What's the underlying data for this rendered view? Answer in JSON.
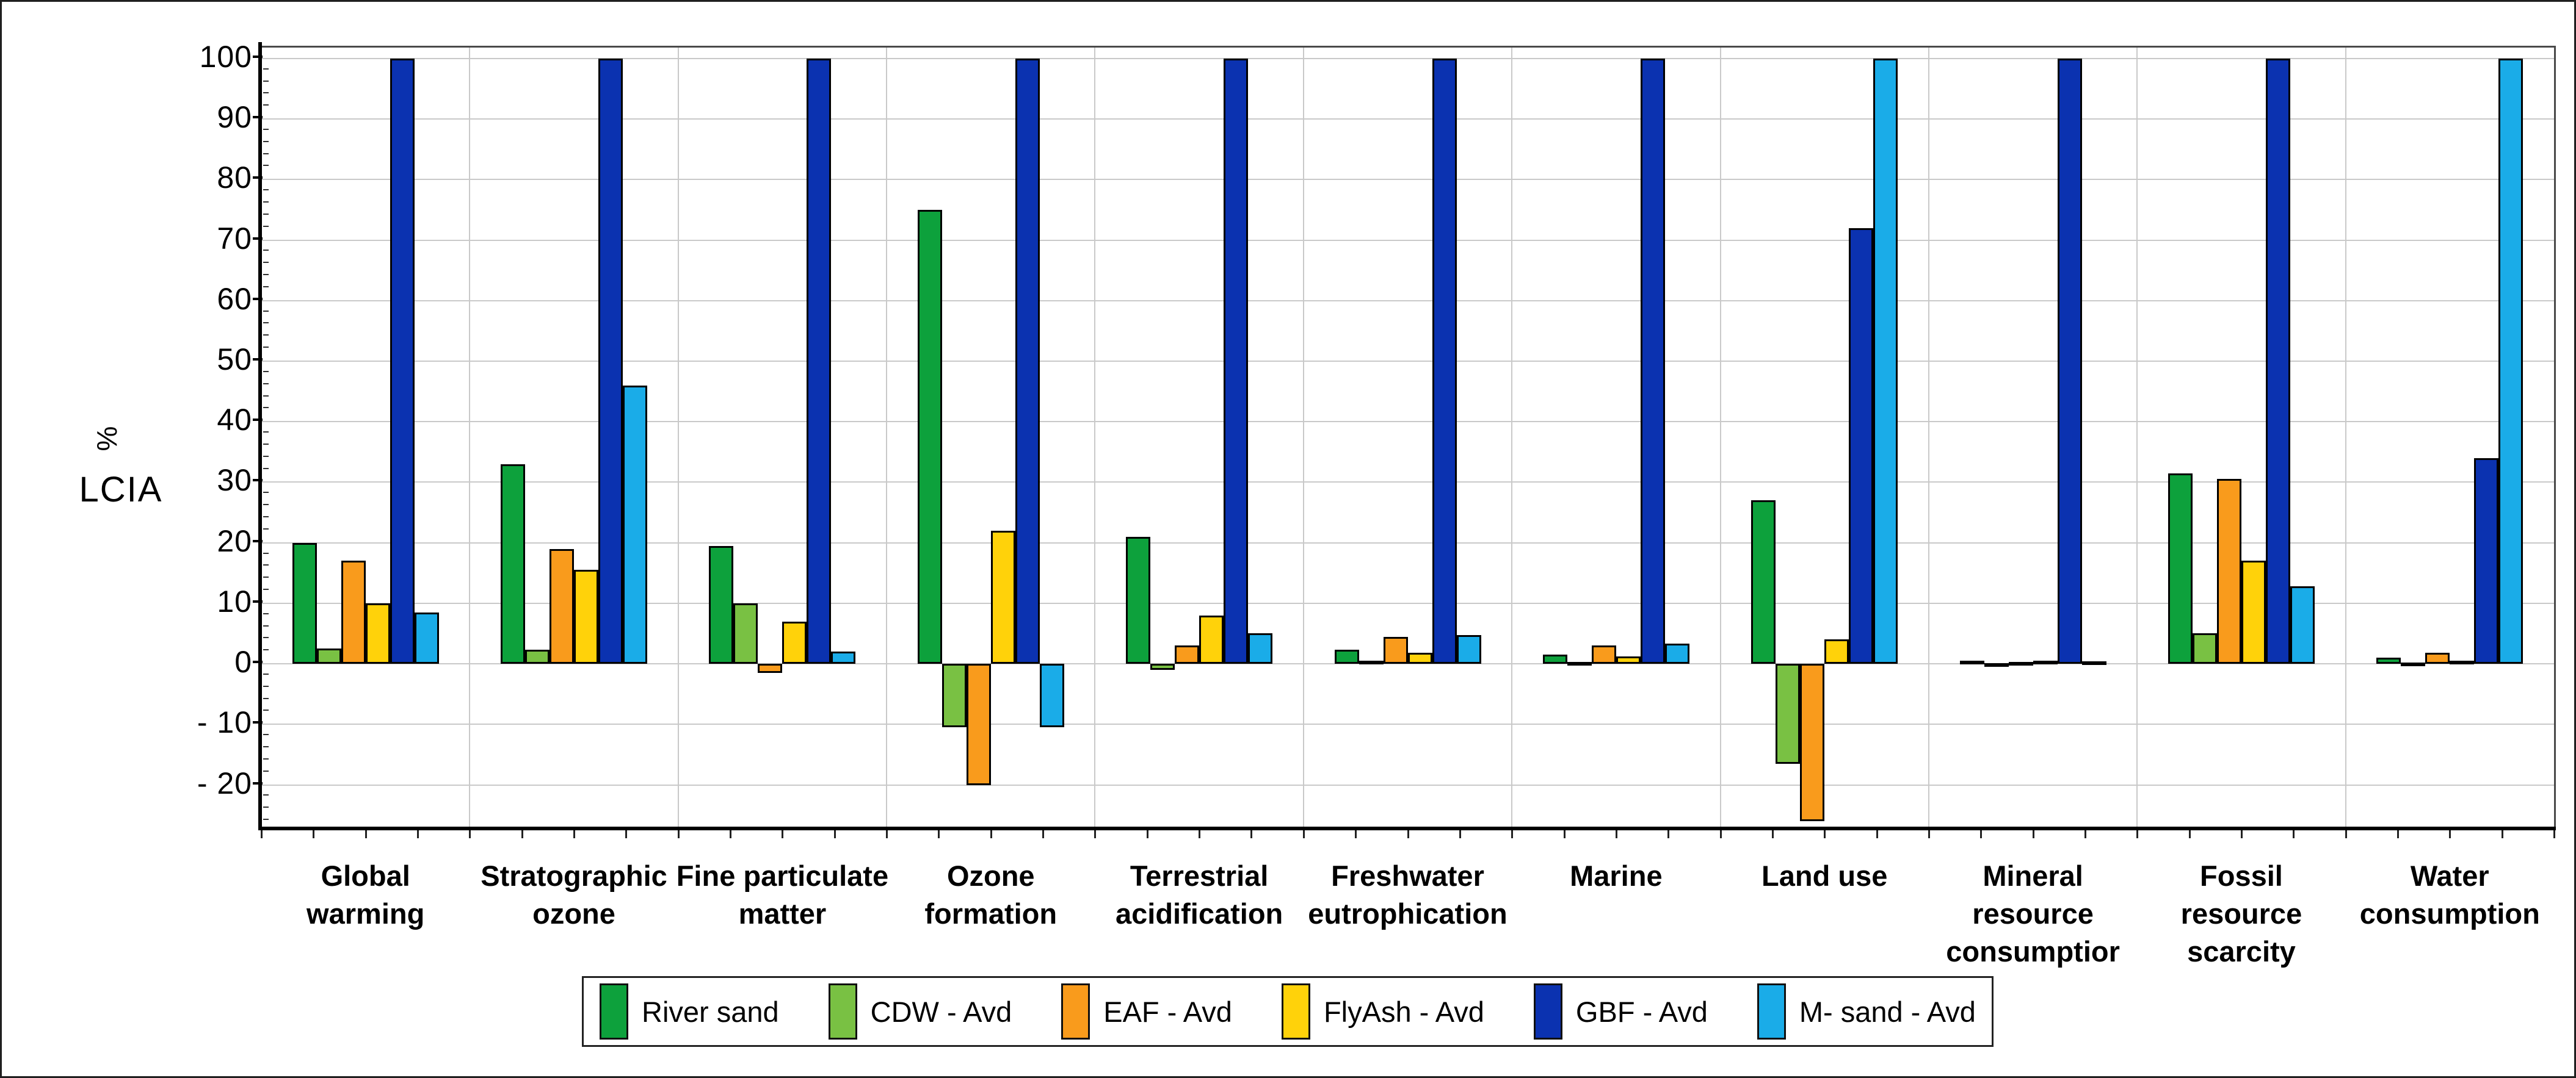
{
  "y_axis": {
    "percent_symbol": "%",
    "lcia_label": "LCIA",
    "tick_labels": [
      "100",
      "90",
      "80",
      "70",
      "60",
      "50",
      "40",
      "30",
      "20",
      "10",
      "0",
      "- 10",
      "- 20"
    ]
  },
  "chart_data": {
    "type": "bar",
    "title": "",
    "xlabel": "",
    "ylabel": "% LCIA",
    "ylim": [
      -27,
      102
    ],
    "yticks": [
      100,
      90,
      80,
      70,
      60,
      50,
      40,
      30,
      20,
      10,
      0,
      -10,
      -20
    ],
    "grid": true,
    "legend_position": "bottom",
    "categories": [
      "Global warming",
      "Stratographic ozone",
      "Fine particulate matter",
      "Ozone formation",
      "Terrestrial acidification",
      "Freshwater eutrophication",
      "Marine",
      "Land use",
      "Mineral resource consumptior",
      "Fossil resource scarcity",
      "Water consumption"
    ],
    "categories_lines": [
      [
        "Global",
        "warming"
      ],
      [
        "Stratographic",
        "ozone"
      ],
      [
        "Fine particulate",
        "matter"
      ],
      [
        "Ozone",
        "formation"
      ],
      [
        "Terrestrial",
        "acidification"
      ],
      [
        "Freshwater",
        "eutrophication"
      ],
      [
        "Marine"
      ],
      [
        "Land use"
      ],
      [
        "Mineral",
        "resource",
        "consumptior"
      ],
      [
        "Fossil",
        "resource",
        "scarcity"
      ],
      [
        "Water",
        "consumption"
      ]
    ],
    "series": [
      {
        "name": "River sand",
        "color": "#0DA13C",
        "values": [
          20,
          33,
          19.5,
          75,
          21,
          2.3,
          1.5,
          27,
          0.5,
          31.5,
          1
        ]
      },
      {
        "name": "CDW - Avd",
        "color": "#79C143",
        "values": [
          2.5,
          2.3,
          10,
          -10.5,
          -1,
          0.5,
          0.3,
          -16.5,
          0.1,
          5,
          0.2
        ]
      },
      {
        "name": "EAF - Avd",
        "color": "#F99B1C",
        "values": [
          17,
          19,
          -1.5,
          -20,
          3,
          4.4,
          3,
          -26,
          0.3,
          30.5,
          1.8
        ]
      },
      {
        "name": "FlyAsh - Avd",
        "color": "#FFD20A",
        "values": [
          10,
          15.5,
          7,
          22,
          8,
          1.8,
          1.2,
          4,
          0.5,
          17,
          0.5
        ]
      },
      {
        "name": "GBF - Avd",
        "color": "#0B32B0",
        "values": [
          100,
          100,
          100,
          100,
          100,
          100,
          100,
          72,
          100,
          100,
          34
        ]
      },
      {
        "name": "M- sand - Avd",
        "color": "#1AACE8",
        "values": [
          8.5,
          46,
          2,
          -10.5,
          5,
          4.7,
          3.3,
          100,
          0.4,
          12.8,
          100
        ]
      }
    ]
  }
}
